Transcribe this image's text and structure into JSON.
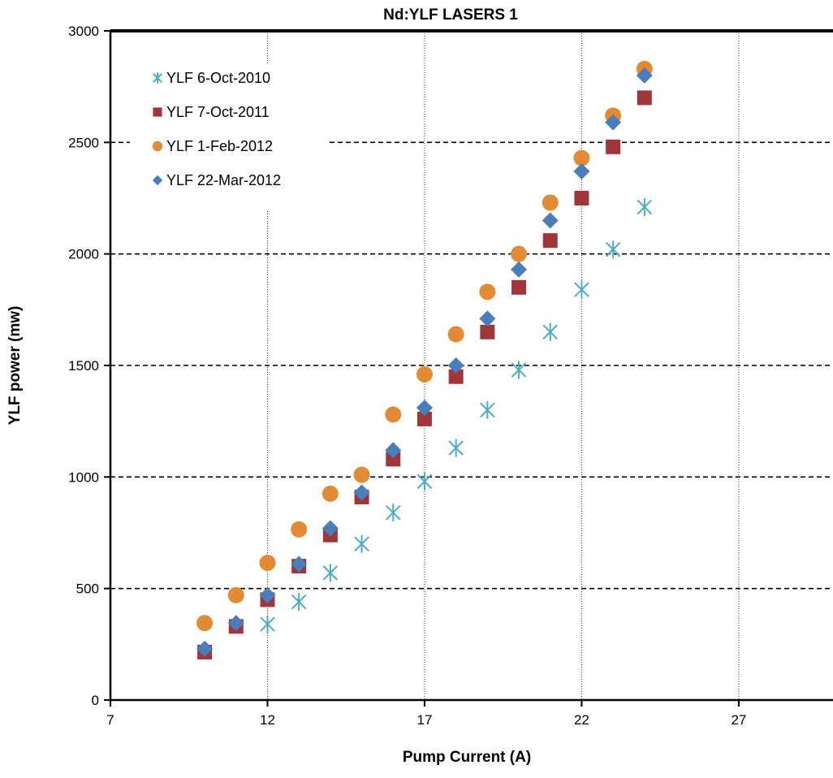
{
  "chart_data": {
    "type": "scatter",
    "title": "Nd:YLF LASERS 1",
    "xlabel": "Pump Current (A)",
    "ylabel": "YLF power (mw)",
    "xlim": [
      7,
      30
    ],
    "ylim": [
      0,
      3000
    ],
    "xticks": [
      7,
      12,
      17,
      22,
      27
    ],
    "yticks": [
      0,
      500,
      1000,
      1500,
      2000,
      2500,
      3000
    ],
    "xtick_labels": [
      "7",
      "12",
      "17",
      "22",
      "27"
    ],
    "ytick_labels": [
      "0",
      "500",
      "1000",
      "1500",
      "2000",
      "2500",
      "3000"
    ],
    "grid": {
      "x": "dotted-vertical",
      "y": "dashed-horizontal"
    },
    "legend_position": "top-left",
    "series": [
      {
        "name": "YLF 6-Oct-2010",
        "marker": "asterisk",
        "color": "#4BACC6",
        "x": [
          12,
          13,
          14,
          15,
          16,
          17,
          18,
          19,
          20,
          21,
          22,
          23,
          24
        ],
        "y": [
          340,
          440,
          570,
          700,
          840,
          980,
          1130,
          1300,
          1480,
          1650,
          1840,
          2020,
          2210
        ]
      },
      {
        "name": "YLF 7-Oct-2011",
        "marker": "square",
        "color": "#A0363A",
        "x": [
          10,
          11,
          12,
          13,
          14,
          15,
          16,
          17,
          18,
          19,
          20,
          21,
          22,
          23,
          24
        ],
        "y": [
          215,
          330,
          450,
          600,
          740,
          910,
          1080,
          1260,
          1450,
          1650,
          1850,
          2060,
          2250,
          2480,
          2700
        ]
      },
      {
        "name": "YLF 1-Feb-2012",
        "marker": "circle",
        "color": "#E38A35",
        "x": [
          10,
          11,
          12,
          13,
          14,
          15,
          16,
          17,
          18,
          19,
          20,
          21,
          22,
          23,
          24
        ],
        "y": [
          345,
          470,
          615,
          765,
          925,
          1010,
          1280,
          1460,
          1640,
          1830,
          2000,
          2230,
          2430,
          2620,
          2830
        ]
      },
      {
        "name": "YLF 22-Mar-2012",
        "marker": "diamond",
        "color": "#4A7EBB",
        "x": [
          10,
          11,
          12,
          13,
          14,
          15,
          16,
          17,
          18,
          19,
          20,
          21,
          22,
          23,
          24
        ],
        "y": [
          230,
          345,
          470,
          610,
          770,
          930,
          1120,
          1310,
          1500,
          1710,
          1930,
          2150,
          2370,
          2590,
          2800
        ]
      }
    ]
  }
}
